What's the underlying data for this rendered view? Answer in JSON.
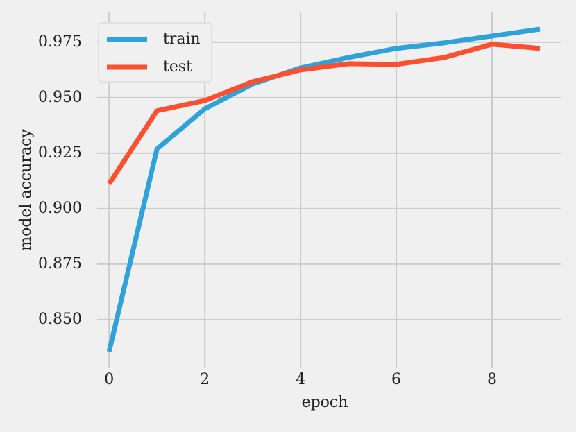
{
  "chart_data": {
    "type": "line",
    "xlabel": "epoch",
    "ylabel": "model accuracy",
    "x": [
      0,
      1,
      2,
      3,
      4,
      5,
      6,
      7,
      8,
      9
    ],
    "series": [
      {
        "name": "train",
        "color": "#30a2da",
        "values": [
          0.8356,
          0.9269,
          0.945,
          0.9562,
          0.9634,
          0.9681,
          0.9722,
          0.9747,
          0.9778,
          0.9809
        ]
      },
      {
        "name": "test",
        "color": "#fc4f30",
        "values": [
          0.9112,
          0.9441,
          0.9487,
          0.9572,
          0.9625,
          0.9653,
          0.965,
          0.9681,
          0.9741,
          0.9722
        ]
      }
    ],
    "xlim": [
      -0.25,
      9.45
    ],
    "ylim": [
      0.8284,
      0.9884
    ],
    "xticks": [
      0,
      2,
      4,
      6,
      8
    ],
    "yticks": [
      {
        "value": 0.85,
        "label": "0.850"
      },
      {
        "value": 0.875,
        "label": "0.875"
      },
      {
        "value": 0.9,
        "label": "0.900"
      },
      {
        "value": 0.925,
        "label": "0.925"
      },
      {
        "value": 0.95,
        "label": "0.950"
      },
      {
        "value": 0.975,
        "label": "0.975"
      }
    ],
    "grid": true,
    "legend": "upper left"
  }
}
